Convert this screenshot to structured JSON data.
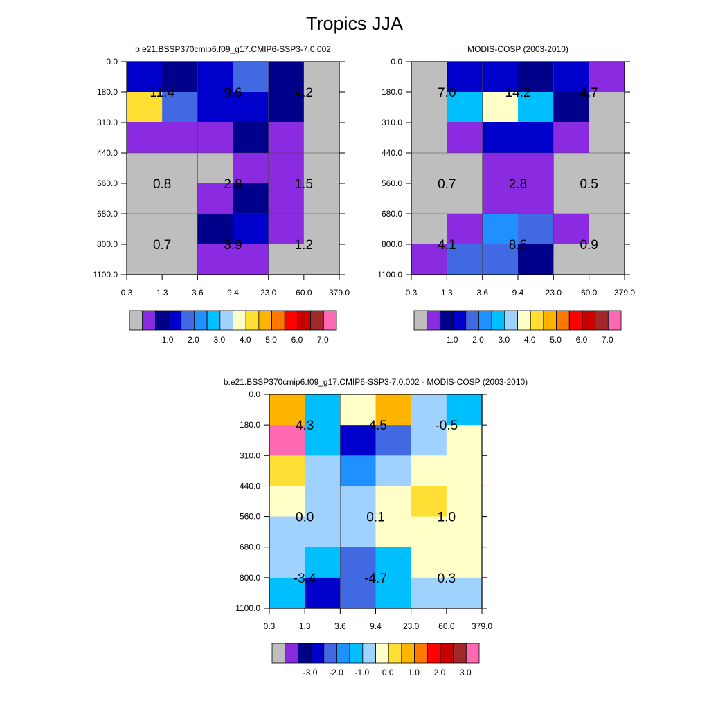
{
  "figure": {
    "title": "Tropics JJA"
  },
  "chart_data": [
    {
      "type": "heatmap",
      "title": "b.e21.BSSP370cmip6.f09_g17.CMIP6-SSP3-7.0.002",
      "x_tick_labels": [
        "0.3",
        "1.3",
        "3.6",
        "9.4",
        "23.0",
        "60.0",
        "379.0"
      ],
      "y_tick_labels": [
        "0.0",
        "180.0",
        "310.0",
        "440.0",
        "560.0",
        "680.0",
        "800.0",
        "1100.0"
      ],
      "cell_colors": [
        [
          "#0000CD",
          "#00008B",
          "#0000CD",
          "#4169E1",
          "#00008B",
          "#BEBEBE"
        ],
        [
          "#FFDF34",
          "#4169E1",
          "#0000CD",
          "#0000CD",
          "#00008B",
          "#BEBEBE"
        ],
        [
          "#8A2BE2",
          "#8A2BE2",
          "#8A2BE2",
          "#00008B",
          "#8A2BE2",
          "#BEBEBE"
        ],
        [
          "#BEBEBE",
          "#BEBEBE",
          "#BEBEBE",
          "#8A2BE2",
          "#8A2BE2",
          "#BEBEBE"
        ],
        [
          "#BEBEBE",
          "#BEBEBE",
          "#8A2BE2",
          "#00008B",
          "#8A2BE2",
          "#BEBEBE"
        ],
        [
          "#BEBEBE",
          "#BEBEBE",
          "#00008B",
          "#0000CD",
          "#8A2BE2",
          "#BEBEBE"
        ],
        [
          "#BEBEBE",
          "#BEBEBE",
          "#8A2BE2",
          "#8A2BE2",
          "#BEBEBE",
          "#BEBEBE"
        ]
      ],
      "box_values": [
        [
          {
            "row": 1,
            "col": 1,
            "text": "11.4"
          },
          {
            "row": 1,
            "col": 3,
            "text": "9.6"
          },
          {
            "row": 1,
            "col": 5,
            "text": "4.2"
          }
        ],
        [
          {
            "row": 4,
            "col": 1,
            "text": "0.8"
          },
          {
            "row": 4,
            "col": 3,
            "text": "2.8"
          },
          {
            "row": 4,
            "col": 5,
            "text": "1.5"
          }
        ],
        [
          {
            "row": 6,
            "col": 1,
            "text": "0.7"
          },
          {
            "row": 6,
            "col": 3,
            "text": "3.9"
          },
          {
            "row": 6,
            "col": 5,
            "text": "1.2"
          }
        ]
      ],
      "colorbar": {
        "colors": [
          "#BEBEBE",
          "#8A2BE2",
          "#00008B",
          "#0000CD",
          "#4169E1",
          "#1E90FF",
          "#00BFFF",
          "#A0D2FF",
          "#FFFFC8",
          "#FFDF34",
          "#FFB400",
          "#FF7800",
          "#FF0000",
          "#C80000",
          "#A02828",
          "#FF69B4"
        ],
        "labels": [
          "1.0",
          "2.0",
          "3.0",
          "4.0",
          "5.0",
          "6.0",
          "7.0"
        ]
      }
    },
    {
      "type": "heatmap",
      "title": "MODIS-COSP (2003-2010)",
      "x_tick_labels": [
        "0.3",
        "1.3",
        "3.6",
        "9.4",
        "23.0",
        "60.0",
        "379.0"
      ],
      "y_tick_labels": [
        "0.0",
        "180.0",
        "310.0",
        "440.0",
        "560.0",
        "680.0",
        "800.0",
        "1100.0"
      ],
      "cell_colors": [
        [
          "#BEBEBE",
          "#0000CD",
          "#0000CD",
          "#00008B",
          "#0000CD",
          "#8A2BE2"
        ],
        [
          "#BEBEBE",
          "#00BFFF",
          "#FFFFC8",
          "#00BFFF",
          "#00008B",
          "#BEBEBE"
        ],
        [
          "#BEBEBE",
          "#8A2BE2",
          "#0000CD",
          "#0000CD",
          "#8A2BE2",
          "#BEBEBE"
        ],
        [
          "#BEBEBE",
          "#BEBEBE",
          "#8A2BE2",
          "#8A2BE2",
          "#BEBEBE",
          "#BEBEBE"
        ],
        [
          "#BEBEBE",
          "#BEBEBE",
          "#8A2BE2",
          "#8A2BE2",
          "#BEBEBE",
          "#BEBEBE"
        ],
        [
          "#BEBEBE",
          "#8A2BE2",
          "#1E90FF",
          "#4169E1",
          "#8A2BE2",
          "#BEBEBE"
        ],
        [
          "#8A2BE2",
          "#4169E1",
          "#4169E1",
          "#00008B",
          "#BEBEBE",
          "#BEBEBE"
        ]
      ],
      "box_values": [
        [
          {
            "row": 1,
            "col": 1,
            "text": "7.0"
          },
          {
            "row": 1,
            "col": 3,
            "text": "14.2"
          },
          {
            "row": 1,
            "col": 5,
            "text": "4.7"
          }
        ],
        [
          {
            "row": 4,
            "col": 1,
            "text": "0.7"
          },
          {
            "row": 4,
            "col": 3,
            "text": "2.8"
          },
          {
            "row": 4,
            "col": 5,
            "text": "0.5"
          }
        ],
        [
          {
            "row": 6,
            "col": 1,
            "text": "4.1"
          },
          {
            "row": 6,
            "col": 3,
            "text": "8.6"
          },
          {
            "row": 6,
            "col": 5,
            "text": "0.9"
          }
        ]
      ],
      "colorbar": {
        "colors": [
          "#BEBEBE",
          "#8A2BE2",
          "#00008B",
          "#0000CD",
          "#4169E1",
          "#1E90FF",
          "#00BFFF",
          "#A0D2FF",
          "#FFFFC8",
          "#FFDF34",
          "#FFB400",
          "#FF7800",
          "#FF0000",
          "#C80000",
          "#A02828",
          "#FF69B4"
        ],
        "labels": [
          "1.0",
          "2.0",
          "3.0",
          "4.0",
          "5.0",
          "6.0",
          "7.0"
        ]
      }
    },
    {
      "type": "heatmap",
      "title": "b.e21.BSSP370cmip6.f09_g17.CMIP6-SSP3-7.0.002 - MODIS-COSP (2003-2010)",
      "x_tick_labels": [
        "0.3",
        "1.3",
        "3.6",
        "9.4",
        "23.0",
        "60.0",
        "379.0"
      ],
      "y_tick_labels": [
        "0.0",
        "180.0",
        "310.0",
        "440.0",
        "560.0",
        "680.0",
        "800.0",
        "1100.0"
      ],
      "cell_colors": [
        [
          "#FFB400",
          "#00BFFF",
          "#FFFFC8",
          "#FFB400",
          "#A0D2FF",
          "#00BFFF"
        ],
        [
          "#FF69B4",
          "#00BFFF",
          "#0000CD",
          "#4169E1",
          "#A0D2FF",
          "#FFFFC8"
        ],
        [
          "#FFDF34",
          "#A0D2FF",
          "#1E90FF",
          "#A0D2FF",
          "#FFFFC8",
          "#FFFFC8"
        ],
        [
          "#FFFFC8",
          "#A0D2FF",
          "#A0D2FF",
          "#FFFFC8",
          "#FFDF34",
          "#FFFFC8"
        ],
        [
          "#A0D2FF",
          "#A0D2FF",
          "#A0D2FF",
          "#FFFFC8",
          "#FFFFC8",
          "#FFFFC8"
        ],
        [
          "#A0D2FF",
          "#00BFFF",
          "#4169E1",
          "#00BFFF",
          "#FFFFC8",
          "#FFFFC8"
        ],
        [
          "#00BFFF",
          "#0000CD",
          "#4169E1",
          "#00BFFF",
          "#A0D2FF",
          "#A0D2FF"
        ]
      ],
      "box_values": [
        [
          {
            "row": 1,
            "col": 1,
            "text": "4.3"
          },
          {
            "row": 1,
            "col": 3,
            "text": "-4.5"
          },
          {
            "row": 1,
            "col": 5,
            "text": "-0.5"
          }
        ],
        [
          {
            "row": 4,
            "col": 1,
            "text": "0.0"
          },
          {
            "row": 4,
            "col": 3,
            "text": "0.1"
          },
          {
            "row": 4,
            "col": 5,
            "text": "1.0"
          }
        ],
        [
          {
            "row": 6,
            "col": 1,
            "text": "-3.4"
          },
          {
            "row": 6,
            "col": 3,
            "text": "-4.7"
          },
          {
            "row": 6,
            "col": 5,
            "text": "0.3"
          }
        ]
      ],
      "colorbar": {
        "colors": [
          "#BEBEBE",
          "#8A2BE2",
          "#00008B",
          "#0000CD",
          "#4169E1",
          "#1E90FF",
          "#00BFFF",
          "#A0D2FF",
          "#FFFFC8",
          "#FFDF34",
          "#FFB400",
          "#FF7800",
          "#FF0000",
          "#C80000",
          "#A02828",
          "#FF69B4"
        ],
        "labels": [
          "-3.0",
          "-2.0",
          "-1.0",
          "0.0",
          "1.0",
          "2.0",
          "3.0"
        ]
      }
    }
  ]
}
